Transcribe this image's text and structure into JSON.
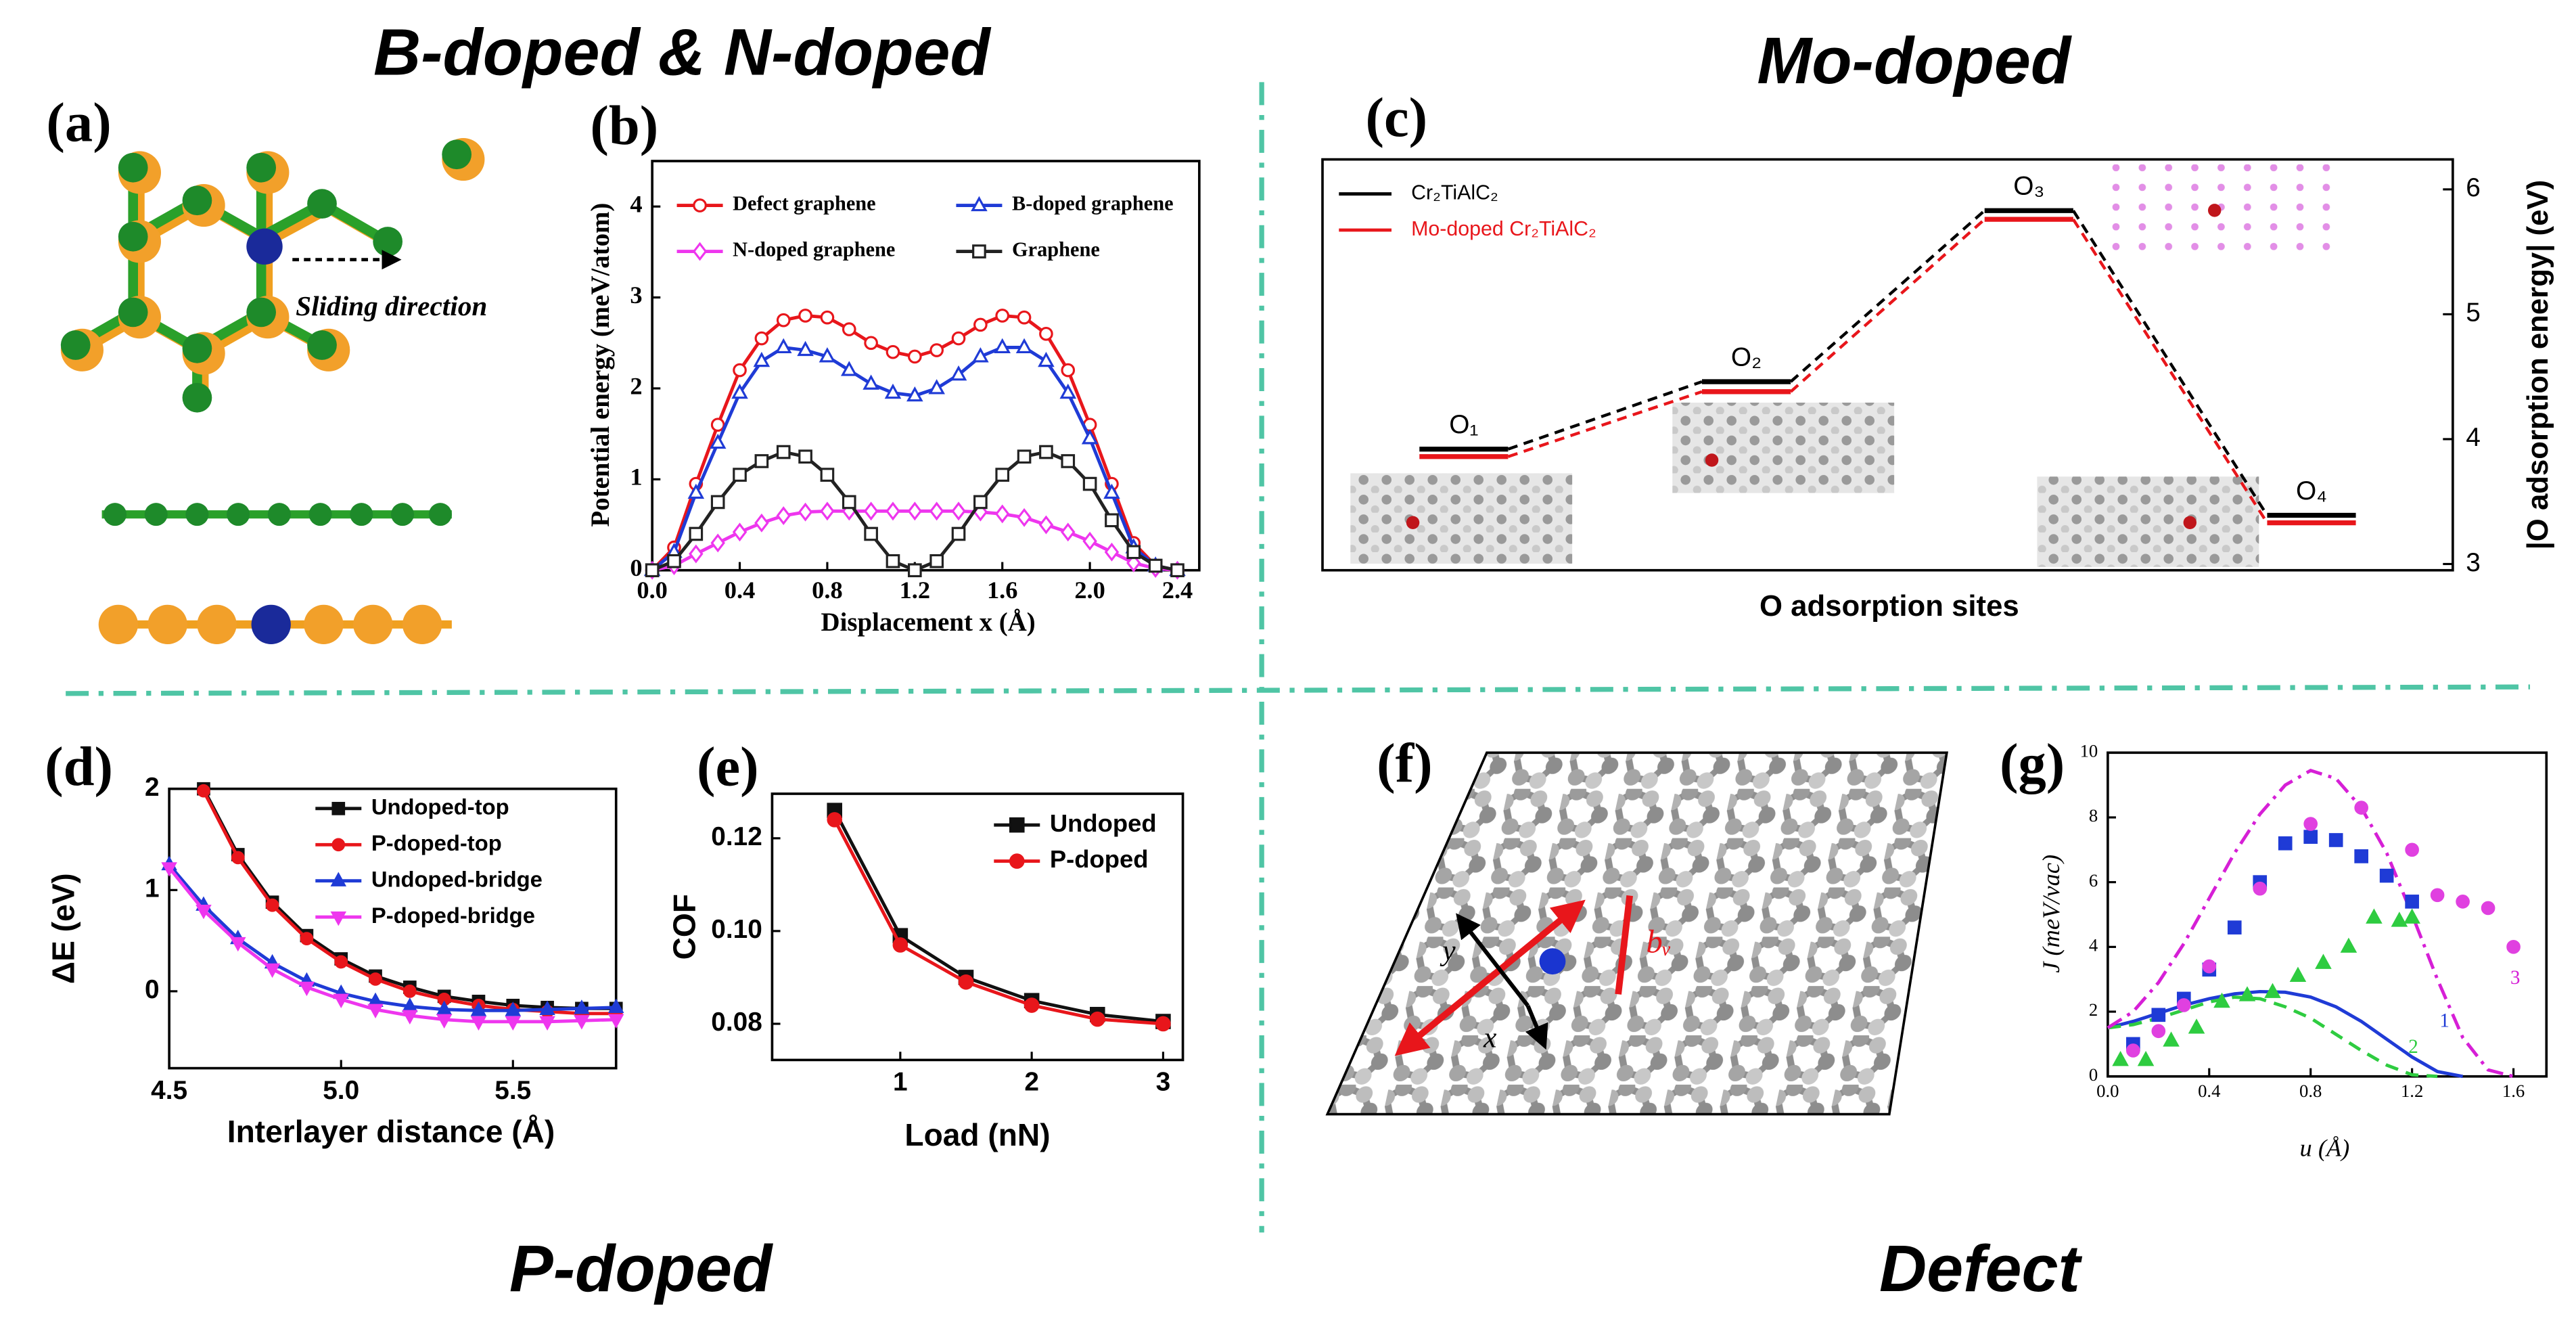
{
  "headings": [
    "B-doped & N-doped",
    "Mo-doped",
    "P-doped",
    "Defect"
  ],
  "panels": {
    "a": {
      "label": "(a)",
      "annotation": "Sliding direction"
    },
    "f": {
      "label": "(f)",
      "labels": [
        "y",
        "x",
        "bᵥ"
      ]
    }
  },
  "chart_data": [
    {
      "type": "line",
      "label": "(b)",
      "xlabel": "Displacement x (Å)",
      "ylabel": "Potential energy (meV/atom)",
      "x": [
        0,
        0.1,
        0.2,
        0.3,
        0.4,
        0.5,
        0.6,
        0.7,
        0.8,
        0.9,
        1,
        1.1,
        1.2,
        1.3,
        1.4,
        1.5,
        1.6,
        1.7,
        1.8,
        1.9,
        2,
        2.1,
        2.2,
        2.3,
        2.4
      ],
      "xlim": [
        0,
        2.5
      ],
      "ylim": [
        0,
        4.5
      ],
      "xticks": [
        {
          "value": 0,
          "label": "0.0"
        },
        0.4,
        0.8,
        1.2,
        1.6,
        {
          "value": 2,
          "label": "2.0"
        },
        2.4
      ],
      "yticks": [
        0,
        1,
        2,
        3,
        4
      ],
      "legend": "upper center",
      "series": [
        {
          "name": "Defect graphene",
          "color": "#e8161b",
          "marker": "circle",
          "values": [
            0,
            0.25,
            0.95,
            1.6,
            2.2,
            2.55,
            2.75,
            2.8,
            2.78,
            2.65,
            2.5,
            2.4,
            2.35,
            2.42,
            2.55,
            2.7,
            2.8,
            2.78,
            2.6,
            2.2,
            1.6,
            0.95,
            0.3,
            0.05,
            0
          ]
        },
        {
          "name": "B-doped graphene",
          "color": "#1f3bd6",
          "marker": "triangle",
          "values": [
            0,
            0.2,
            0.85,
            1.4,
            1.95,
            2.3,
            2.45,
            2.42,
            2.35,
            2.2,
            2.05,
            1.95,
            1.92,
            2,
            2.15,
            2.35,
            2.45,
            2.45,
            2.3,
            1.95,
            1.45,
            0.85,
            0.25,
            0.05,
            0
          ]
        },
        {
          "name": "N-doped graphene",
          "color": "#ee36ee",
          "marker": "diamond",
          "values": [
            0,
            0.05,
            0.18,
            0.3,
            0.42,
            0.52,
            0.6,
            0.64,
            0.65,
            0.65,
            0.65,
            0.65,
            0.65,
            0.65,
            0.65,
            0.64,
            0.62,
            0.58,
            0.5,
            0.42,
            0.32,
            0.2,
            0.08,
            0.02,
            0
          ]
        },
        {
          "name": "Graphene",
          "color": "#222222",
          "marker": "square",
          "values": [
            0,
            0.1,
            0.4,
            0.75,
            1.05,
            1.2,
            1.3,
            1.25,
            1.05,
            0.75,
            0.4,
            0.1,
            0,
            0.1,
            0.4,
            0.75,
            1.05,
            1.25,
            1.3,
            1.2,
            0.95,
            0.55,
            0.2,
            0.05,
            0
          ]
        }
      ]
    },
    {
      "type": "step",
      "label": "(c)",
      "xlabel": "O adsorption sites",
      "y2label": "|O adsorption energy| (eV)",
      "categories": [
        "O₁",
        "O₂",
        "O₃",
        "O₄"
      ],
      "y2lim": [
        2.95,
        6.24
      ],
      "y2ticks": [
        3,
        4,
        5,
        6
      ],
      "legend": "upper left",
      "series": [
        {
          "name": "Cr₂TiAlC₂",
          "color": "#000000",
          "axis": "y2",
          "values": [
            3.92,
            4.46,
            5.83,
            3.39
          ]
        },
        {
          "name": "Mo-doped Cr₂TiAlC₂",
          "color": "#e8161b",
          "axis": "y2",
          "values": [
            3.86,
            4.38,
            5.76,
            3.33
          ]
        }
      ]
    },
    {
      "type": "line",
      "label": "(d)",
      "xlabel": "Interlayer distance (Å)",
      "ylabel": "ΔE (eV)",
      "x": [
        4.5,
        4.6,
        4.7,
        4.8,
        4.9,
        5,
        5.1,
        5.2,
        5.3,
        5.4,
        5.5,
        5.6,
        5.7,
        5.8
      ],
      "xlim": [
        4.5,
        5.8
      ],
      "ylim": [
        -0.76,
        2
      ],
      "xticks": [
        4.5,
        {
          "value": 5,
          "label": "5.0"
        },
        5.5
      ],
      "yticks": [
        0,
        1,
        2
      ],
      "legend": "upper right",
      "series": [
        {
          "name": "Undoped-top",
          "color": "#111111",
          "marker": "square",
          "values": [
            null,
            2,
            1.35,
            0.88,
            0.55,
            0.32,
            0.15,
            0.04,
            -0.05,
            -0.1,
            -0.14,
            -0.16,
            -0.17,
            -0.17
          ]
        },
        {
          "name": "P-doped-top",
          "color": "#e8161b",
          "marker": "circle",
          "values": [
            null,
            1.98,
            1.32,
            0.85,
            0.52,
            0.29,
            0.12,
            0,
            -0.08,
            -0.14,
            -0.18,
            -0.2,
            -0.22,
            -0.22
          ]
        },
        {
          "name": "Undoped-bridge",
          "color": "#1f3bd6",
          "marker": "triangle",
          "values": [
            1.25,
            0.85,
            0.52,
            0.28,
            0.1,
            -0.02,
            -0.1,
            -0.15,
            -0.18,
            -0.19,
            -0.19,
            -0.18,
            -0.17,
            -0.16
          ]
        },
        {
          "name": "P-doped-bridge",
          "color": "#ee36ee",
          "marker": "tridown",
          "values": [
            1.22,
            0.8,
            0.48,
            0.22,
            0.04,
            -0.08,
            -0.18,
            -0.24,
            -0.28,
            -0.3,
            -0.3,
            -0.3,
            -0.29,
            -0.28
          ]
        }
      ]
    },
    {
      "type": "line",
      "label": "(e)",
      "xlabel": "Load (nN)",
      "ylabel": "COF",
      "x": [
        0.5,
        1,
        1.5,
        2,
        2.5,
        3
      ],
      "xlim": [
        0.025,
        3.15
      ],
      "ylim": [
        0.0722,
        0.1296
      ],
      "xticks": [
        1,
        2,
        3
      ],
      "yticks": [
        0.08,
        {
          "value": 0.1,
          "label": "0.10"
        },
        0.12
      ],
      "legend": "upper right",
      "series": [
        {
          "name": "Undoped",
          "color": "#111111",
          "marker": "square",
          "values": [
            0.126,
            0.099,
            0.09,
            0.085,
            0.082,
            0.0805
          ]
        },
        {
          "name": "P-doped",
          "color": "#e8161b",
          "marker": "circle",
          "values": [
            0.124,
            0.097,
            0.089,
            0.084,
            0.081,
            0.08
          ]
        }
      ]
    },
    {
      "type": "line",
      "label": "(g)",
      "xlabel": "u (Å)",
      "ylabel": "J (meV/vac)",
      "x": [
        0,
        0.1,
        0.2,
        0.3,
        0.4,
        0.5,
        0.6,
        0.7,
        0.8,
        0.9,
        1,
        1.1,
        1.2,
        1.3,
        1.4,
        1.5,
        1.6
      ],
      "xlim": [
        0,
        1.73
      ],
      "ylim": [
        0,
        10
      ],
      "xticks": [
        {
          "value": 0,
          "label": "0.0"
        },
        0.4,
        0.8,
        1.2,
        1.6
      ],
      "yticks": [
        0,
        2,
        4,
        6,
        8,
        10
      ],
      "legend": false,
      "series": [
        {
          "name": "1",
          "color": "#1f3bd6",
          "style": "solid",
          "values": [
            1.5,
            1.7,
            1.95,
            2.2,
            2.4,
            2.55,
            2.62,
            2.6,
            2.45,
            2.15,
            1.7,
            1.15,
            0.6,
            0.15,
            0,
            null,
            null
          ]
        },
        {
          "name": "2",
          "color": "#2ecc40",
          "style": "dashed",
          "values": [
            1.5,
            1.6,
            1.8,
            2.05,
            2.3,
            2.45,
            2.4,
            2.15,
            1.8,
            1.3,
            0.8,
            0.35,
            0.05,
            0,
            null,
            null,
            null
          ]
        },
        {
          "name": "3",
          "color": "#d61fd6",
          "style": "dashdot",
          "values": [
            1.5,
            2,
            2.9,
            4.1,
            5.5,
            6.9,
            8.1,
            9,
            9.45,
            9.2,
            8.3,
            6.9,
            5,
            3,
            1.2,
            0.2,
            0
          ]
        },
        {
          "color": "#1f3bd6",
          "marker": "square",
          "style": "none",
          "x": [
            0.1,
            0.2,
            0.3,
            0.4,
            0.5,
            0.6,
            0.7,
            0.8,
            0.9,
            1,
            1.1,
            1.2
          ],
          "values": [
            1,
            1.9,
            2.4,
            3.3,
            4.6,
            6,
            7.2,
            7.4,
            7.3,
            6.8,
            6.2,
            5.4
          ]
        },
        {
          "color": "#e040e0",
          "marker": "circle",
          "style": "none",
          "x": [
            0.1,
            0.2,
            0.3,
            0.4,
            0.6,
            0.8,
            1,
            1.2,
            1.3,
            1.4,
            1.5,
            1.6
          ],
          "values": [
            0.8,
            1.4,
            2.2,
            3.4,
            5.8,
            7.8,
            8.3,
            7,
            5.6,
            5.4,
            5.2,
            4
          ]
        },
        {
          "color": "#2ecc40",
          "marker": "triangle",
          "style": "none",
          "x": [
            0.05,
            0.15,
            0.25,
            0.35,
            0.45,
            0.55,
            0.65,
            0.75,
            0.85,
            0.95,
            1.05,
            1.15,
            1.2
          ],
          "values": [
            0.5,
            0.5,
            1.1,
            1.5,
            2.3,
            2.5,
            2.6,
            3.1,
            3.5,
            4,
            4.9,
            4.8,
            4.9
          ]
        }
      ]
    }
  ]
}
